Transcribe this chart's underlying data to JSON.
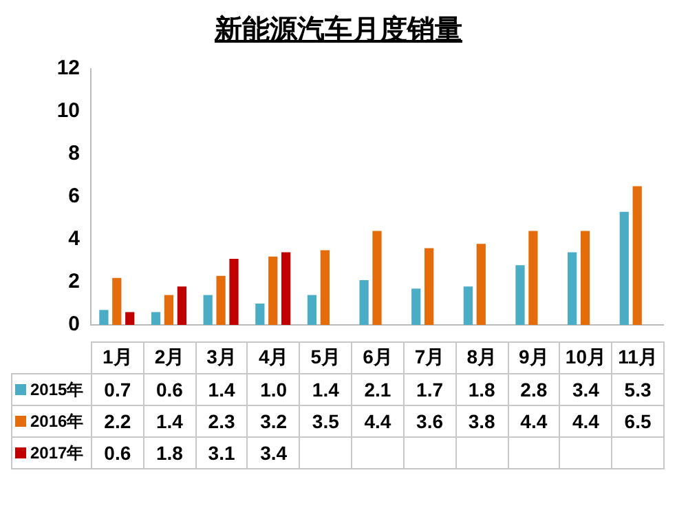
{
  "chart_data": {
    "type": "bar",
    "title": "新能源汽车月度销量",
    "categories": [
      "1月",
      "2月",
      "3月",
      "4月",
      "5月",
      "6月",
      "7月",
      "8月",
      "9月",
      "10月",
      "11月"
    ],
    "series": [
      {
        "name": "2015年",
        "color": "#4bacc6",
        "values": [
          0.7,
          0.6,
          1.4,
          1.0,
          1.4,
          2.1,
          1.7,
          1.8,
          2.8,
          3.4,
          5.3
        ],
        "value_labels": [
          "0.7",
          "0.6",
          "1.4",
          "1.0",
          "1.4",
          "2.1",
          "1.7",
          "1.8",
          "2.8",
          "3.4",
          "5.3"
        ]
      },
      {
        "name": "2016年",
        "color": "#e46c0a",
        "values": [
          2.2,
          1.4,
          2.3,
          3.2,
          3.5,
          4.4,
          3.6,
          3.8,
          4.4,
          4.4,
          6.5
        ],
        "value_labels": [
          "2.2",
          "1.4",
          "2.3",
          "3.2",
          "3.5",
          "4.4",
          "3.6",
          "3.8",
          "4.4",
          "4.4",
          "6.5"
        ]
      },
      {
        "name": "2017年",
        "color": "#c00000",
        "values": [
          0.6,
          1.8,
          3.1,
          3.4,
          null,
          null,
          null,
          null,
          null,
          null,
          null
        ],
        "value_labels": [
          "0.6",
          "1.8",
          "3.1",
          "3.4",
          null,
          null,
          null,
          null,
          null,
          null,
          null
        ]
      }
    ],
    "ylim": [
      0,
      12
    ],
    "yticks": [
      0,
      2,
      4,
      6,
      8,
      10,
      12
    ],
    "grid": false,
    "legend": "bottom"
  }
}
